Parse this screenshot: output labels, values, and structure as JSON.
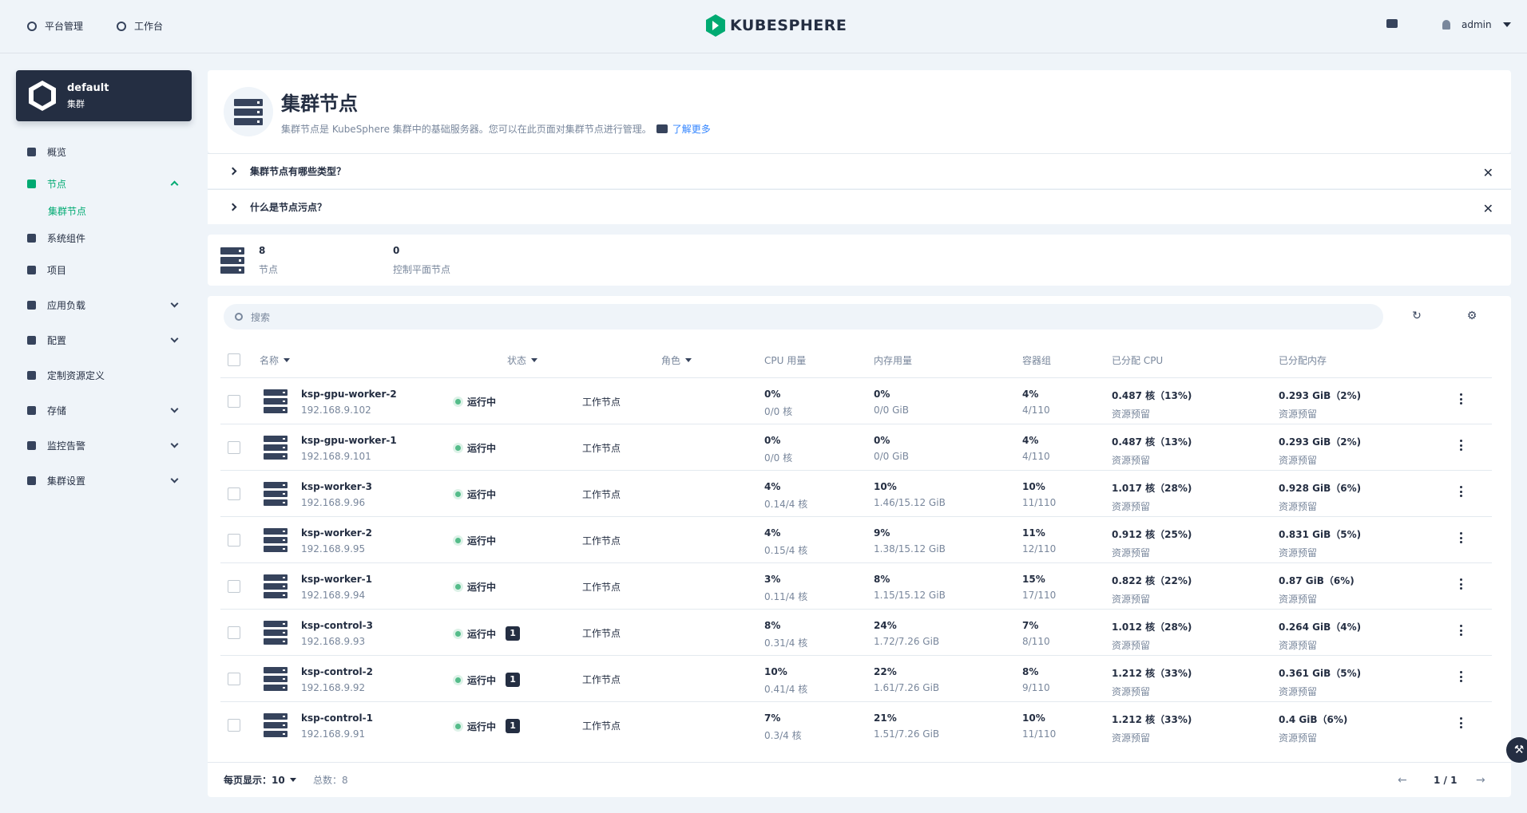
{
  "topbar": {
    "platform": "平台管理",
    "workbench": "工作台",
    "brand": "KUBESPHERE",
    "user": "admin"
  },
  "cluster": {
    "name": "default",
    "type": "集群"
  },
  "sidebar": {
    "items": [
      {
        "label": "概览",
        "icon": "dashboard-icon"
      },
      {
        "label": "节点",
        "icon": "node-icon",
        "active": true
      },
      {
        "label": "集群节点",
        "sub": true
      },
      {
        "label": "系统组件",
        "icon": "components-icon"
      },
      {
        "label": "项目",
        "icon": "project-icon"
      },
      {
        "label": "应用负载",
        "icon": "workload-icon",
        "expand": true
      },
      {
        "label": "配置",
        "icon": "config-icon",
        "expand": true
      },
      {
        "label": "定制资源定义",
        "icon": "crd-icon"
      },
      {
        "label": "存储",
        "icon": "storage-icon",
        "expand": true
      },
      {
        "label": "监控告警",
        "icon": "monitor-icon",
        "expand": true
      },
      {
        "label": "集群设置",
        "icon": "settings-icon",
        "expand": true
      }
    ]
  },
  "header": {
    "title": "集群节点",
    "desc": "集群节点是 KubeSphere 集群中的基础服务器。您可以在此页面对集群节点进行管理。",
    "learn_more": "了解更多"
  },
  "faq": [
    "集群节点有哪些类型？",
    "什么是节点污点？"
  ],
  "stats": {
    "nodes_value": "8",
    "nodes_label": "节点",
    "control_value": "0",
    "control_label": "控制平面节点"
  },
  "search": {
    "placeholder": "搜索"
  },
  "columns": {
    "name": "名称",
    "status": "状态",
    "role": "角色",
    "cpu": "CPU 用量",
    "mem": "内存用量",
    "pods": "容器组",
    "alloc_cpu": "已分配 CPU",
    "alloc_mem": "已分配内存"
  },
  "rows": [
    {
      "name": "ksp-gpu-worker-2",
      "ip": "192.168.9.102",
      "status": "运行中",
      "badge": "",
      "role": "工作节点",
      "cpu": "0%",
      "cpu_d": "0/0 核",
      "mem": "0%",
      "mem_d": "0/0 GiB",
      "pods": "4%",
      "pods_d": "4/110",
      "acpu": "0.487 核（13%)",
      "acpu_d": "资源预留",
      "amem": "0.293 GiB（2%)",
      "amem_d": "资源预留"
    },
    {
      "name": "ksp-gpu-worker-1",
      "ip": "192.168.9.101",
      "status": "运行中",
      "badge": "",
      "role": "工作节点",
      "cpu": "0%",
      "cpu_d": "0/0 核",
      "mem": "0%",
      "mem_d": "0/0 GiB",
      "pods": "4%",
      "pods_d": "4/110",
      "acpu": "0.487 核（13%)",
      "acpu_d": "资源预留",
      "amem": "0.293 GiB（2%)",
      "amem_d": "资源预留"
    },
    {
      "name": "ksp-worker-3",
      "ip": "192.168.9.96",
      "status": "运行中",
      "badge": "",
      "role": "工作节点",
      "cpu": "4%",
      "cpu_d": "0.14/4 核",
      "mem": "10%",
      "mem_d": "1.46/15.12 GiB",
      "pods": "10%",
      "pods_d": "11/110",
      "acpu": "1.017 核（28%)",
      "acpu_d": "资源预留",
      "amem": "0.928 GiB（6%)",
      "amem_d": "资源预留"
    },
    {
      "name": "ksp-worker-2",
      "ip": "192.168.9.95",
      "status": "运行中",
      "badge": "",
      "role": "工作节点",
      "cpu": "4%",
      "cpu_d": "0.15/4 核",
      "mem": "9%",
      "mem_d": "1.38/15.12 GiB",
      "pods": "11%",
      "pods_d": "12/110",
      "acpu": "0.912 核（25%)",
      "acpu_d": "资源预留",
      "amem": "0.831 GiB（5%)",
      "amem_d": "资源预留"
    },
    {
      "name": "ksp-worker-1",
      "ip": "192.168.9.94",
      "status": "运行中",
      "badge": "",
      "role": "工作节点",
      "cpu": "3%",
      "cpu_d": "0.11/4 核",
      "mem": "8%",
      "mem_d": "1.15/15.12 GiB",
      "pods": "15%",
      "pods_d": "17/110",
      "acpu": "0.822 核（22%)",
      "acpu_d": "资源预留",
      "amem": "0.87 GiB（6%)",
      "amem_d": "资源预留"
    },
    {
      "name": "ksp-control-3",
      "ip": "192.168.9.93",
      "status": "运行中",
      "badge": "1",
      "role": "工作节点",
      "cpu": "8%",
      "cpu_d": "0.31/4 核",
      "mem": "24%",
      "mem_d": "1.72/7.26 GiB",
      "pods": "7%",
      "pods_d": "8/110",
      "acpu": "1.012 核（28%)",
      "acpu_d": "资源预留",
      "amem": "0.264 GiB（4%)",
      "amem_d": "资源预留"
    },
    {
      "name": "ksp-control-2",
      "ip": "192.168.9.92",
      "status": "运行中",
      "badge": "1",
      "role": "工作节点",
      "cpu": "10%",
      "cpu_d": "0.41/4 核",
      "mem": "22%",
      "mem_d": "1.61/7.26 GiB",
      "pods": "8%",
      "pods_d": "9/110",
      "acpu": "1.212 核（33%)",
      "acpu_d": "资源预留",
      "amem": "0.361 GiB（5%)",
      "amem_d": "资源预留"
    },
    {
      "name": "ksp-control-1",
      "ip": "192.168.9.91",
      "status": "运行中",
      "badge": "1",
      "role": "工作节点",
      "cpu": "7%",
      "cpu_d": "0.3/4 核",
      "mem": "21%",
      "mem_d": "1.51/7.26 GiB",
      "pods": "10%",
      "pods_d": "11/110",
      "acpu": "1.212 核（33%)",
      "acpu_d": "资源预留",
      "amem": "0.4 GiB（6%)",
      "amem_d": "资源预留"
    }
  ],
  "pager": {
    "per_page_label": "每页显示：",
    "per_page": "10",
    "total": "总数：8",
    "page": "1 / 1"
  },
  "colors": {
    "accent": "#00aa72",
    "dark": "#242e42",
    "status_ok": "#55bc8a"
  }
}
